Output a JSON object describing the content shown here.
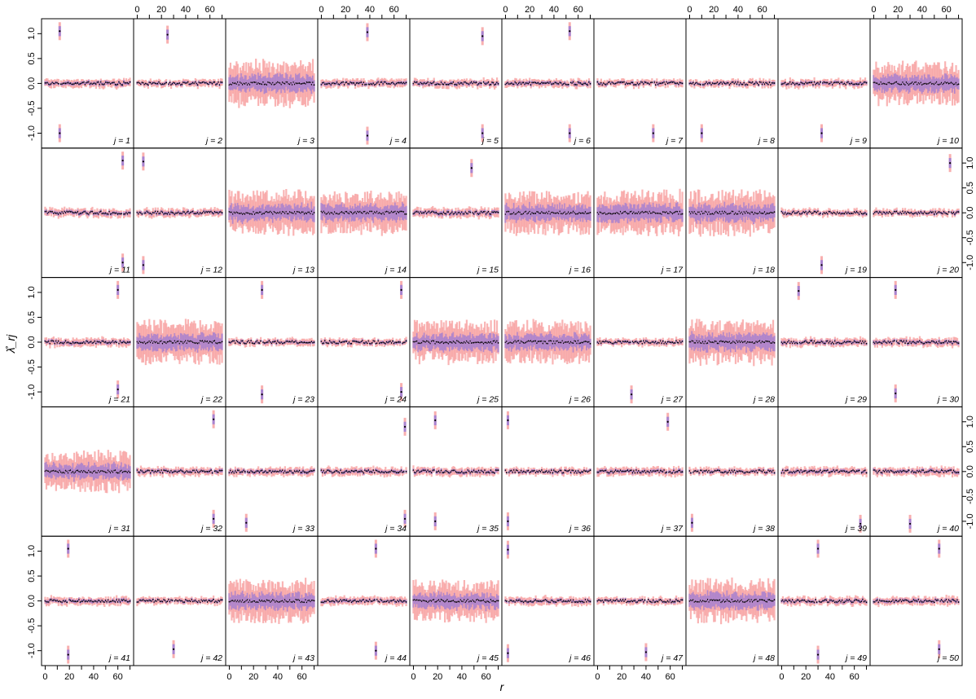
{
  "chart_data": {
    "type": "small-multiples-interval",
    "xlabel": "r",
    "ylabel": "λ̊_rj",
    "xlim": [
      -3,
      73
    ],
    "ylim": [
      -1.3,
      1.3
    ],
    "xticks": [
      0,
      20,
      40,
      60
    ],
    "xtick_labels": [
      "0",
      "20",
      "40",
      "60"
    ],
    "yticks": [
      -1.0,
      -0.5,
      0.0,
      0.5,
      1.0
    ],
    "ytick_labels": [
      "-1.0",
      "-0.5",
      "0.0",
      "0.5",
      "1.0"
    ],
    "grid": false,
    "layout": {
      "rows": 5,
      "cols": 10
    },
    "series_styles": {
      "outer_interval": "#f7a1a1",
      "inner_interval": "#9b7bd6",
      "point_estimate": "#000000"
    },
    "panels": [
      {
        "j": 1,
        "label": "j = 1",
        "spikes": [
          [
            12,
            1.05
          ],
          [
            12,
            -1.0
          ]
        ],
        "spread": 0.07
      },
      {
        "j": 2,
        "label": "j = 2",
        "spikes": [
          [
            25,
            0.98
          ]
        ],
        "spread": 0.06
      },
      {
        "j": 3,
        "label": "j = 3",
        "spikes": [],
        "spread": 0.35
      },
      {
        "j": 4,
        "label": "j = 4",
        "spikes": [
          [
            38,
            1.03
          ],
          [
            38,
            -1.05
          ]
        ],
        "spread": 0.07
      },
      {
        "j": 5,
        "label": "j = 5",
        "spikes": [
          [
            57,
            0.95
          ],
          [
            57,
            -1.0
          ]
        ],
        "spread": 0.07
      },
      {
        "j": 6,
        "label": "j = 6",
        "spikes": [
          [
            53,
            1.05
          ],
          [
            53,
            -1.0
          ]
        ],
        "spread": 0.07
      },
      {
        "j": 7,
        "label": "j = 7",
        "spikes": [
          [
            46,
            -1.0
          ]
        ],
        "spread": 0.06
      },
      {
        "j": 8,
        "label": "j = 8",
        "spikes": [
          [
            10,
            -1.0
          ]
        ],
        "spread": 0.06
      },
      {
        "j": 9,
        "label": "j = 9",
        "spikes": [
          [
            33,
            -1.0
          ]
        ],
        "spread": 0.07
      },
      {
        "j": 10,
        "label": "j = 10",
        "spikes": [],
        "spread": 0.32
      },
      {
        "j": 11,
        "label": "j = 11",
        "spikes": [
          [
            64,
            1.05
          ],
          [
            64,
            -1.0
          ]
        ],
        "spread": 0.07
      },
      {
        "j": 12,
        "label": "j = 12",
        "spikes": [
          [
            5,
            1.03
          ],
          [
            5,
            -1.05
          ]
        ],
        "spread": 0.07
      },
      {
        "j": 13,
        "label": "j = 13",
        "spikes": [],
        "spread": 0.33
      },
      {
        "j": 14,
        "label": "j = 14",
        "spikes": [],
        "spread": 0.32
      },
      {
        "j": 15,
        "label": "j = 15",
        "spikes": [
          [
            48,
            0.9
          ]
        ],
        "spread": 0.08
      },
      {
        "j": 16,
        "label": "j = 16",
        "spikes": [],
        "spread": 0.32
      },
      {
        "j": 17,
        "label": "j = 17",
        "spikes": [],
        "spread": 0.33
      },
      {
        "j": 18,
        "label": "j = 18",
        "spikes": [],
        "spread": 0.33
      },
      {
        "j": 19,
        "label": "j = 19",
        "spikes": [
          [
            33,
            -1.05
          ]
        ],
        "spread": 0.06
      },
      {
        "j": 20,
        "label": "j = 20",
        "spikes": [
          [
            63,
            1.0
          ]
        ],
        "spread": 0.06
      },
      {
        "j": 21,
        "label": "j = 21",
        "spikes": [
          [
            60,
            1.05
          ],
          [
            60,
            -0.95
          ]
        ],
        "spread": 0.07
      },
      {
        "j": 22,
        "label": "j = 22",
        "spikes": [],
        "spread": 0.32
      },
      {
        "j": 23,
        "label": "j = 23",
        "spikes": [
          [
            27,
            1.05
          ],
          [
            27,
            -1.05
          ]
        ],
        "spread": 0.06
      },
      {
        "j": 24,
        "label": "j = 24",
        "spikes": [
          [
            66,
            1.05
          ],
          [
            66,
            -1.0
          ]
        ],
        "spread": 0.06
      },
      {
        "j": 25,
        "label": "j = 25",
        "spikes": [],
        "spread": 0.32
      },
      {
        "j": 26,
        "label": "j = 26",
        "spikes": [],
        "spread": 0.32
      },
      {
        "j": 27,
        "label": "j = 27",
        "spikes": [
          [
            28,
            -1.05
          ]
        ],
        "spread": 0.06
      },
      {
        "j": 28,
        "label": "j = 28",
        "spikes": [],
        "spread": 0.33
      },
      {
        "j": 29,
        "label": "j = 29",
        "spikes": [
          [
            14,
            1.03
          ]
        ],
        "spread": 0.07
      },
      {
        "j": 30,
        "label": "j = 30",
        "spikes": [
          [
            18,
            1.05
          ],
          [
            18,
            -1.03
          ]
        ],
        "spread": 0.07
      },
      {
        "j": 31,
        "label": "j = 31",
        "spikes": [],
        "spread": 0.3
      },
      {
        "j": 32,
        "label": "j = 32",
        "spikes": [
          [
            63,
            1.05
          ],
          [
            63,
            -0.95
          ]
        ],
        "spread": 0.07
      },
      {
        "j": 33,
        "label": "j = 33",
        "spikes": [
          [
            14,
            -1.03
          ]
        ],
        "spread": 0.07
      },
      {
        "j": 34,
        "label": "j = 34",
        "spikes": [
          [
            69,
            0.9
          ],
          [
            69,
            -0.95
          ]
        ],
        "spread": 0.07
      },
      {
        "j": 35,
        "label": "j = 35",
        "spikes": [
          [
            18,
            1.03
          ],
          [
            18,
            -1.0
          ]
        ],
        "spread": 0.07
      },
      {
        "j": 36,
        "label": "j = 36",
        "spikes": [
          [
            2,
            1.03
          ],
          [
            2,
            -1.0
          ]
        ],
        "spread": 0.06
      },
      {
        "j": 37,
        "label": "j = 37",
        "spikes": [
          [
            58,
            1.0
          ]
        ],
        "spread": 0.07
      },
      {
        "j": 38,
        "label": "j = 38",
        "spikes": [
          [
            2,
            -1.03
          ]
        ],
        "spread": 0.06
      },
      {
        "j": 39,
        "label": "j = 39",
        "spikes": [
          [
            65,
            -1.05
          ]
        ],
        "spread": 0.07
      },
      {
        "j": 40,
        "label": "j = 40",
        "spikes": [
          [
            30,
            -1.05
          ]
        ],
        "spread": 0.07
      },
      {
        "j": 41,
        "label": "j = 41",
        "spikes": [
          [
            19,
            1.05
          ],
          [
            19,
            -1.08
          ]
        ],
        "spread": 0.07
      },
      {
        "j": 42,
        "label": "j = 42",
        "spikes": [
          [
            30,
            -0.97
          ]
        ],
        "spread": 0.06
      },
      {
        "j": 43,
        "label": "j = 43",
        "spikes": [],
        "spread": 0.32
      },
      {
        "j": 44,
        "label": "j = 44",
        "spikes": [
          [
            45,
            1.05
          ],
          [
            45,
            -1.0
          ]
        ],
        "spread": 0.07
      },
      {
        "j": 45,
        "label": "j = 45",
        "spikes": [],
        "spread": 0.3
      },
      {
        "j": 46,
        "label": "j = 46",
        "spikes": [
          [
            2,
            1.03
          ],
          [
            2,
            -1.05
          ]
        ],
        "spread": 0.07
      },
      {
        "j": 47,
        "label": "j = 47",
        "spikes": [
          [
            40,
            -1.03
          ]
        ],
        "spread": 0.06
      },
      {
        "j": 48,
        "label": "j = 48",
        "spikes": [],
        "spread": 0.32
      },
      {
        "j": 49,
        "label": "j = 49",
        "spikes": [
          [
            30,
            1.05
          ],
          [
            30,
            -1.08
          ]
        ],
        "spread": 0.07
      },
      {
        "j": 50,
        "label": "j = 50",
        "spikes": [
          [
            54,
            1.05
          ],
          [
            54,
            -0.97
          ]
        ],
        "spread": 0.07
      }
    ]
  }
}
